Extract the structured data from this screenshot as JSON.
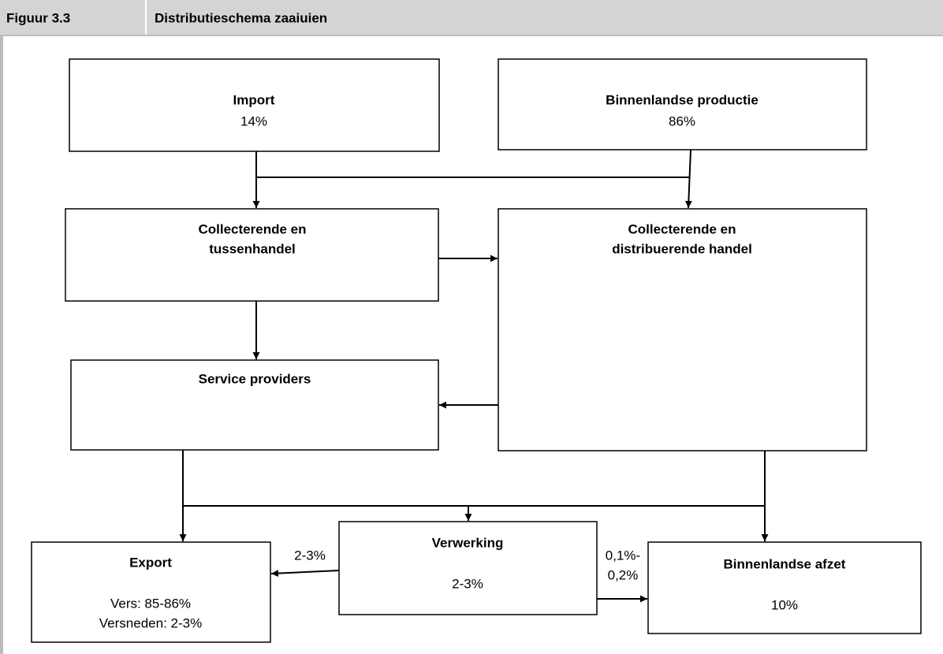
{
  "header": {
    "figure": "Figuur 3.3",
    "title": "Distributieschema zaaiuien"
  },
  "nodes": [
    {
      "title": [
        "Import"
      ],
      "value": [
        "14%"
      ]
    },
    {
      "title": [
        "Binnenlandse productie"
      ],
      "value": [
        "86%"
      ]
    },
    {
      "title": [
        "Collecterende en",
        "tussenhandel"
      ]
    },
    {
      "title": [
        "Collecterende en",
        "distribuerende handel"
      ]
    },
    {
      "title": [
        "Service providers"
      ]
    },
    {
      "title": [
        "Export"
      ],
      "value": [
        "Vers: 85-86%",
        "Versneden: 2-3%"
      ]
    },
    {
      "title": [
        "Verwerking"
      ],
      "value": [
        "2-3%"
      ]
    },
    {
      "title": [
        "Binnenlandse afzet"
      ],
      "value": [
        "10%"
      ]
    }
  ],
  "edge_labels": [
    {
      "text": [
        "2-3%"
      ]
    },
    {
      "text": [
        "0,1%-",
        "0,2%"
      ]
    }
  ]
}
